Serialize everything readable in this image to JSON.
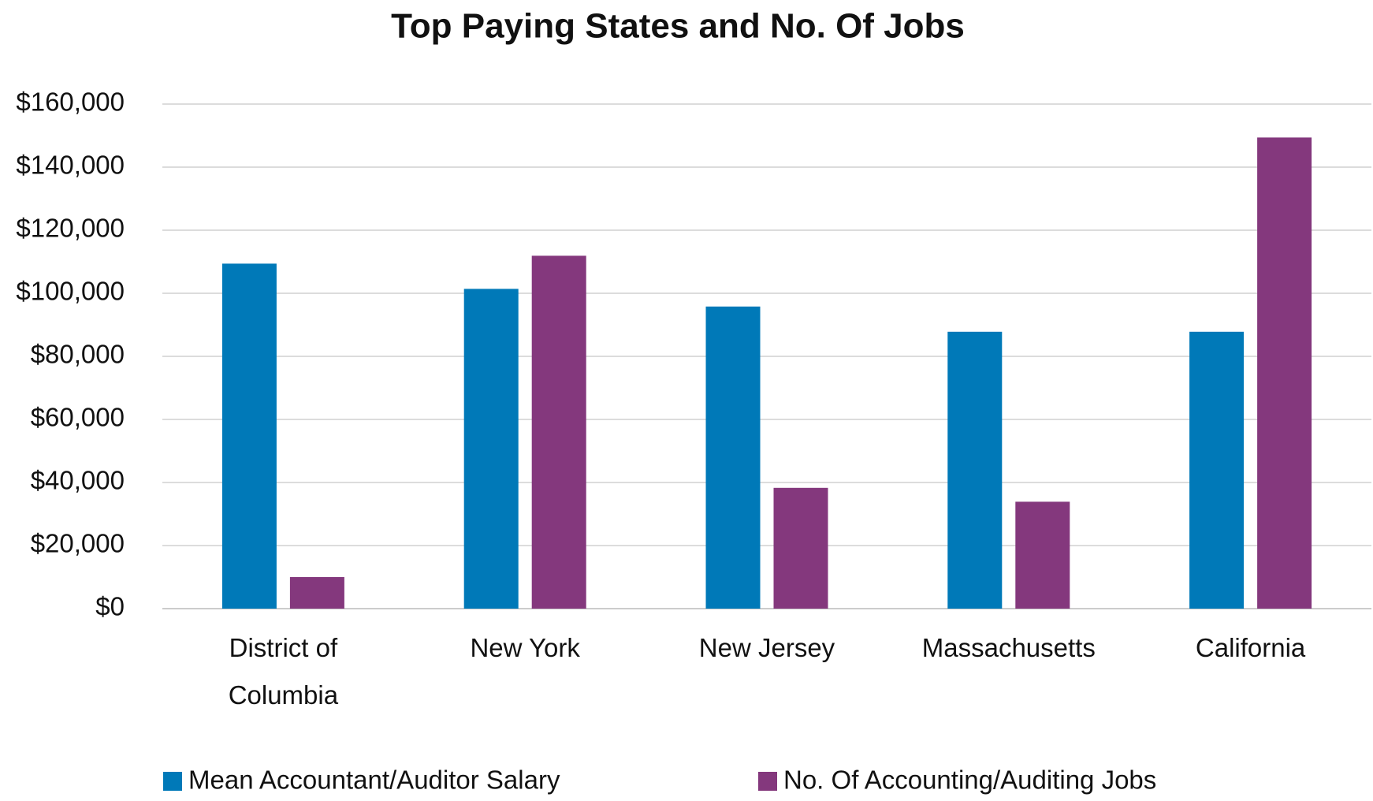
{
  "chart_data": {
    "type": "bar",
    "title": "Top Paying States and No. Of Jobs",
    "categories": [
      "District of Columbia",
      "New York",
      "New Jersey",
      "Massachusetts",
      "California"
    ],
    "series": [
      {
        "name": "Mean Accountant/Auditor Salary",
        "color": "#0079b8",
        "values": [
          109400,
          101400,
          95800,
          87800,
          87800
        ]
      },
      {
        "name": "No. Of Accounting/Auditing Jobs",
        "color": "#84387d",
        "values": [
          10000,
          111900,
          38300,
          33900,
          149400
        ]
      }
    ],
    "ylim": [
      0,
      160000
    ],
    "yticks": [
      {
        "value": 0,
        "label": "$0"
      },
      {
        "value": 20000,
        "label": "$20,000"
      },
      {
        "value": 40000,
        "label": "$40,000"
      },
      {
        "value": 60000,
        "label": "$60,000"
      },
      {
        "value": 80000,
        "label": "$80,000"
      },
      {
        "value": 100000,
        "label": "$100,000"
      },
      {
        "value": 120000,
        "label": "$120,000"
      },
      {
        "value": 140000,
        "label": "$140,000"
      },
      {
        "value": 160000,
        "label": "$160,000"
      }
    ],
    "grid": true,
    "legend": "bottom"
  }
}
